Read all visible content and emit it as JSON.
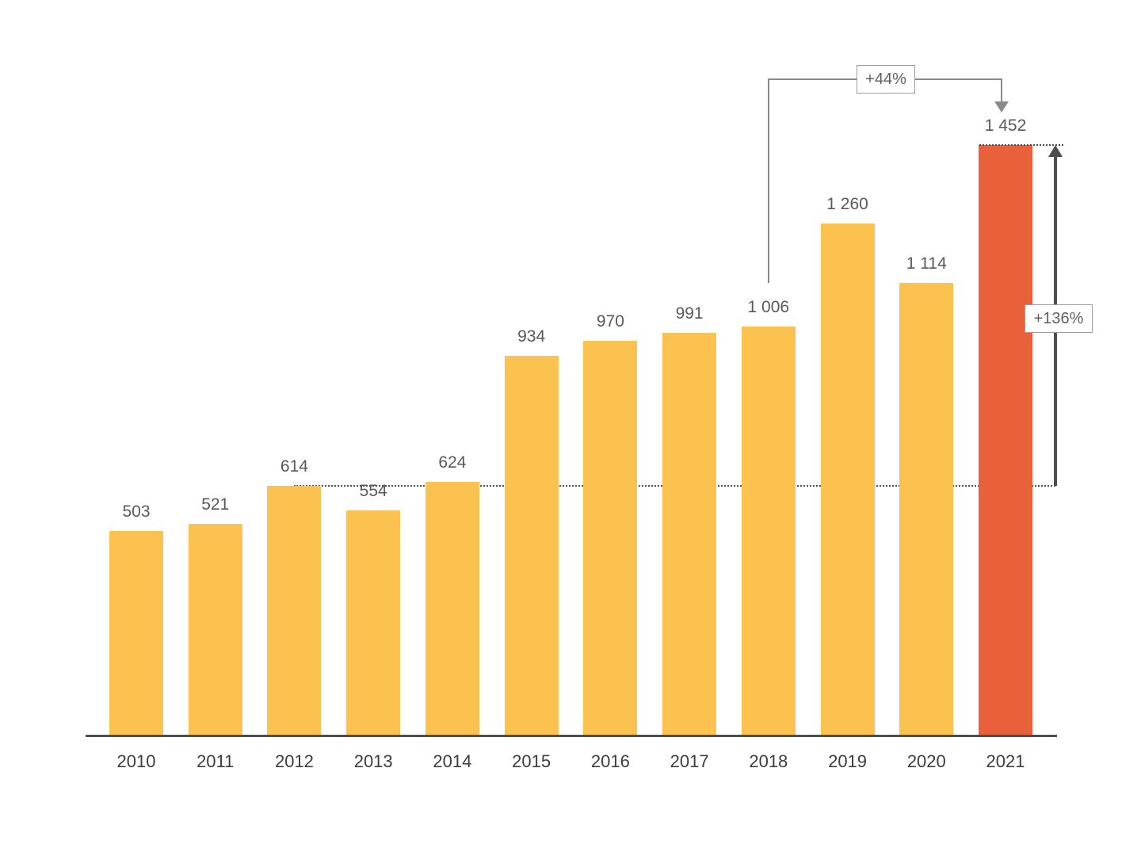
{
  "chart_data": {
    "type": "bar",
    "categories": [
      "2010",
      "2011",
      "2012",
      "2013",
      "2014",
      "2015",
      "2016",
      "2017",
      "2018",
      "2019",
      "2020",
      "2021"
    ],
    "values": [
      503,
      521,
      614,
      554,
      624,
      934,
      970,
      991,
      1006,
      1260,
      1114,
      1452
    ],
    "value_labels": [
      "503",
      "521",
      "614",
      "554",
      "624",
      "934",
      "970",
      "991",
      "1 006",
      "1 260",
      "1 114",
      "1 452"
    ],
    "title": "",
    "xlabel": "",
    "ylabel": "",
    "ylim": [
      0,
      1600
    ],
    "grid": false,
    "legend": false,
    "bar_color": "#FBC24F",
    "highlight_color": "#E8613A",
    "highlight_index": 11,
    "axis_color": "#4d4d4d",
    "label_color": "#595959",
    "tick_color": "#3d3d3d",
    "annotations": [
      {
        "label": "+44%",
        "type": "bracket-arrow",
        "from_category": "2018",
        "to_category": "2021"
      },
      {
        "label": "+136%",
        "type": "vertical-arrow",
        "from_value": 614,
        "to_value": 1452
      }
    ],
    "reference_lines": [
      {
        "level": 614,
        "style": "dotted"
      },
      {
        "level": 1452,
        "style": "dotted"
      }
    ]
  }
}
